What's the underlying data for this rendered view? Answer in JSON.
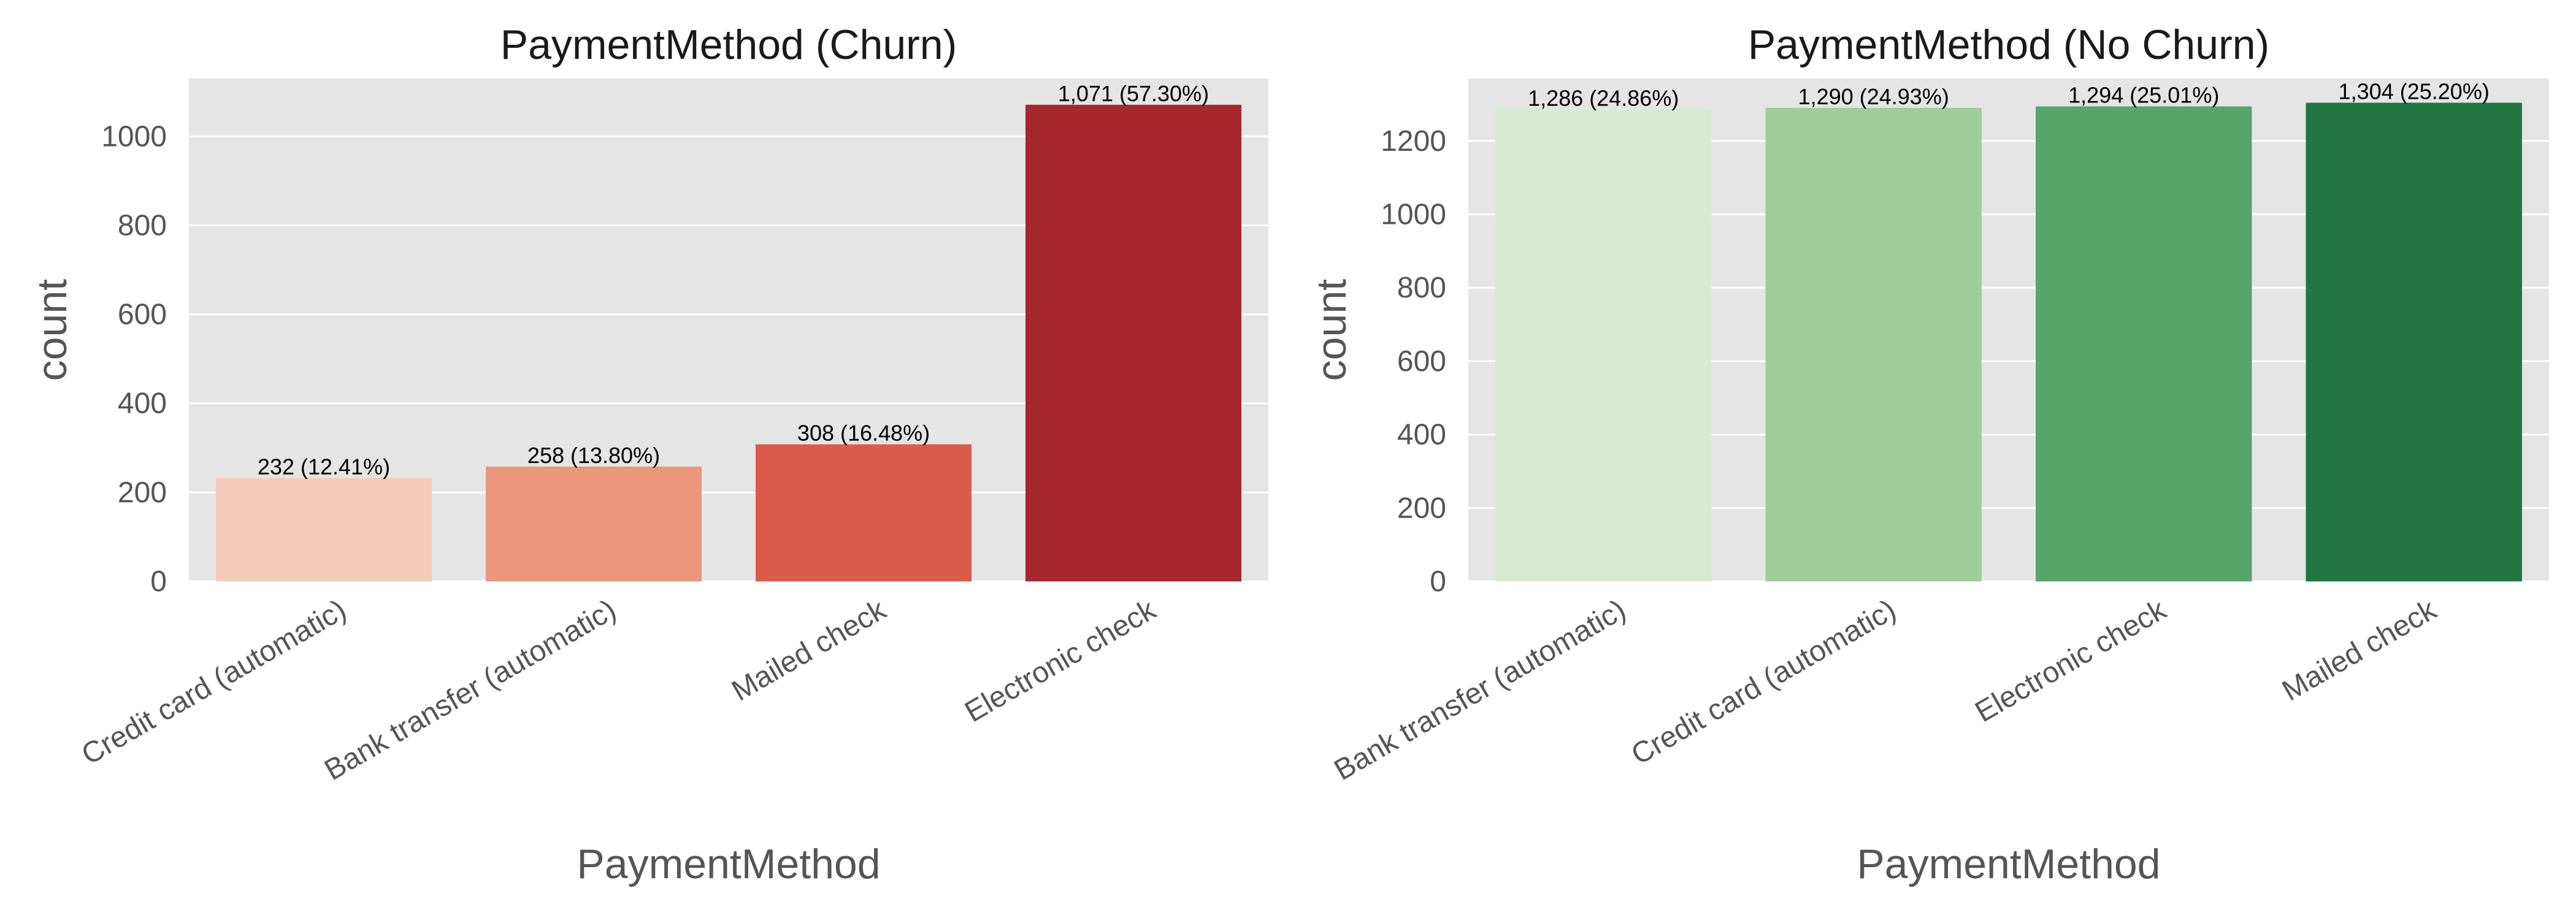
{
  "chart_data": [
    {
      "type": "bar",
      "title": "PaymentMethod (Churn)",
      "xlabel": "PaymentMethod",
      "ylabel": "count",
      "ylim": [
        0,
        1130
      ],
      "yticks": [
        0,
        200,
        400,
        600,
        800,
        1000
      ],
      "grid": true,
      "categories": [
        "Credit card (automatic)",
        "Bank transfer (automatic)",
        "Mailed check",
        "Electronic check"
      ],
      "values": [
        232,
        258,
        308,
        1071
      ],
      "data_labels": [
        "232 (12.41%)",
        "258 (13.80%)",
        "308 (16.48%)",
        "1,071 (57.30%)"
      ],
      "colors": [
        "#f5cbbb",
        "#eb957a",
        "#dc5a4a",
        "#a6282d"
      ]
    },
    {
      "type": "bar",
      "title": "PaymentMethod (No Churn)",
      "xlabel": "PaymentMethod",
      "ylabel": "count",
      "ylim": [
        0,
        1370
      ],
      "yticks": [
        0,
        200,
        400,
        600,
        800,
        1000,
        1200
      ],
      "grid": true,
      "categories": [
        "Bank transfer (automatic)",
        "Credit card (automatic)",
        "Electronic check",
        "Mailed check"
      ],
      "values": [
        1286,
        1290,
        1294,
        1304
      ],
      "data_labels": [
        "1,286 (24.86%)",
        "1,290 (24.93%)",
        "1,294 (25.01%)",
        "1,304 (25.20%)"
      ],
      "colors": [
        "#d6ebd1",
        "#9ecd99",
        "#57a56a",
        "#217541"
      ]
    }
  ],
  "style": {
    "plot_background": "#e5e5e5",
    "grid_color": "#ffffff",
    "tick_label_color": "#555555",
    "axis_label_color": "#555555",
    "title_color": "#1a1a1a",
    "data_label_color": "#000000"
  }
}
